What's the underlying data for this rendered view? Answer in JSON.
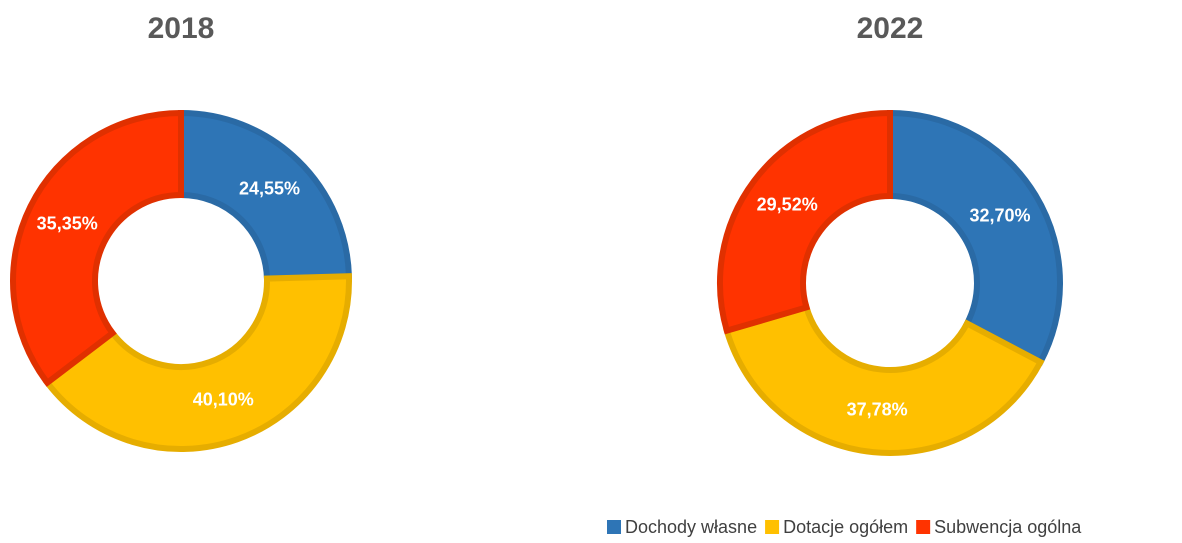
{
  "chart_data": [
    {
      "type": "donut",
      "title": "2018",
      "values": [
        24.55,
        40.1,
        35.35
      ],
      "value_labels": [
        "24,55%",
        "40,10%",
        "35,35%"
      ]
    },
    {
      "type": "donut",
      "title": "2022",
      "values": [
        32.7,
        37.78,
        29.52
      ],
      "value_labels": [
        "32,70%",
        "37,78%",
        "29,52%"
      ]
    }
  ],
  "legend": {
    "names": [
      "Dochody własne",
      "Dotacje ogółem",
      "Subwencja ogólna"
    ],
    "colors": [
      "#2e75b6",
      "#ffc000",
      "#ff3300"
    ],
    "border_colors": [
      "#2a6aa5",
      "#e6ad00",
      "#e03000"
    ]
  }
}
